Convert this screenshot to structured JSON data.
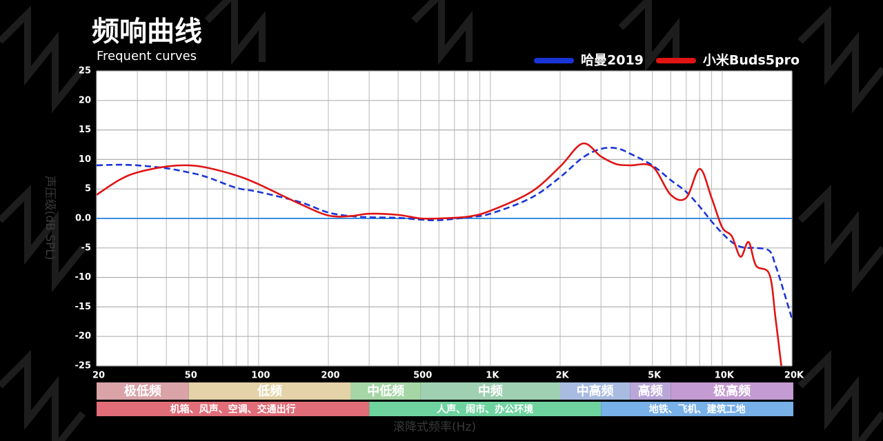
{
  "chart_data": {
    "type": "line",
    "title": "频响曲线",
    "subtitle": "Frequent curves",
    "y_label": "声压级(dB SPL)",
    "x_label": "滚降式频率(Hz)",
    "log_x": true,
    "grid": true,
    "xlim": [
      20,
      20000
    ],
    "ylim": [
      -25,
      25
    ],
    "xticks": [
      20,
      50,
      100,
      200,
      500,
      {
        "value": 1000,
        "label": "1K"
      },
      {
        "value": 2000,
        "label": "2K"
      },
      {
        "value": 5000,
        "label": "5K"
      },
      {
        "value": 10000,
        "label": "10K"
      },
      {
        "value": 20000,
        "label": "20K"
      }
    ],
    "xgrid": [
      20,
      30,
      40,
      50,
      60,
      70,
      80,
      90,
      100,
      200,
      300,
      400,
      500,
      600,
      700,
      800,
      900,
      1000,
      2000,
      3000,
      4000,
      5000,
      6000,
      7000,
      8000,
      9000,
      10000,
      20000
    ],
    "yticks": [
      25,
      20,
      15,
      10,
      5,
      {
        "value": 0,
        "label": "0.0"
      },
      -5,
      -10,
      -15,
      -20,
      -25
    ],
    "zero_line_color": "#3a8ee0",
    "x": [
      20,
      25,
      30,
      40,
      50,
      60,
      80,
      100,
      150,
      200,
      250,
      300,
      400,
      500,
      600,
      800,
      1000,
      1500,
      2000,
      2500,
      3000,
      3500,
      4000,
      5000,
      6000,
      7000,
      8000,
      9000,
      10000,
      11000,
      12000,
      13000,
      14000,
      16000,
      17000,
      18000,
      20000
    ],
    "series": [
      {
        "name": "哈曼2019",
        "color": "#1a35d6",
        "dashed": true,
        "values": [
          9,
          9.1,
          9,
          8.5,
          7.8,
          7,
          5.2,
          4.5,
          2.8,
          1,
          0.4,
          0.2,
          0.1,
          -0.2,
          -0.3,
          0.2,
          0.8,
          3.5,
          7,
          10.3,
          11.8,
          11.9,
          11,
          9,
          6.5,
          4.5,
          2,
          -0.5,
          -2.5,
          -4,
          -4.8,
          -5,
          -5,
          -5.5,
          -8,
          -11,
          -17
        ]
      },
      {
        "name": "小米Buds5pro",
        "color": "#e01414",
        "dashed": false,
        "values": [
          4,
          6.5,
          7.8,
          8.8,
          9,
          8.6,
          7.3,
          5.8,
          2.5,
          0.5,
          0.4,
          0.8,
          0.6,
          0,
          0,
          0.3,
          1.3,
          4.5,
          8.8,
          12.7,
          10.5,
          9.2,
          9,
          8.8,
          4,
          3.5,
          8.4,
          3.5,
          -1.5,
          -3,
          -6.5,
          -4,
          -8,
          -9.5,
          -17,
          -25,
          null
        ]
      }
    ],
    "bands": [
      [
        {
          "from": 20,
          "to": 50,
          "label": "极低频",
          "color": "#d9a3a8"
        },
        {
          "from": 50,
          "to": 250,
          "label": "低频",
          "color": "#e4d3a9"
        },
        {
          "from": 250,
          "to": 500,
          "label": "中低频",
          "color": "#a6d6a6"
        },
        {
          "from": 500,
          "to": 2000,
          "label": "中频",
          "color": "#9fd0b2"
        },
        {
          "from": 2000,
          "to": 4000,
          "label": "中高频",
          "color": "#a9bbe0"
        },
        {
          "from": 4000,
          "to": 6000,
          "label": "高频",
          "color": "#b9a6d9"
        },
        {
          "from": 6000,
          "to": 20000,
          "label": "极高频",
          "color": "#c49bd2"
        }
      ],
      [
        {
          "from": 20,
          "to": 300,
          "label": "机箱、风声、空调、交通出行",
          "color": "#e06d78"
        },
        {
          "from": 300,
          "to": 3000,
          "label": "人声、闹市、办公环境",
          "color": "#6fd3a0"
        },
        {
          "from": 3000,
          "to": 20000,
          "label": "地铁、飞机、建筑工地",
          "color": "#78b0e8"
        }
      ]
    ]
  }
}
